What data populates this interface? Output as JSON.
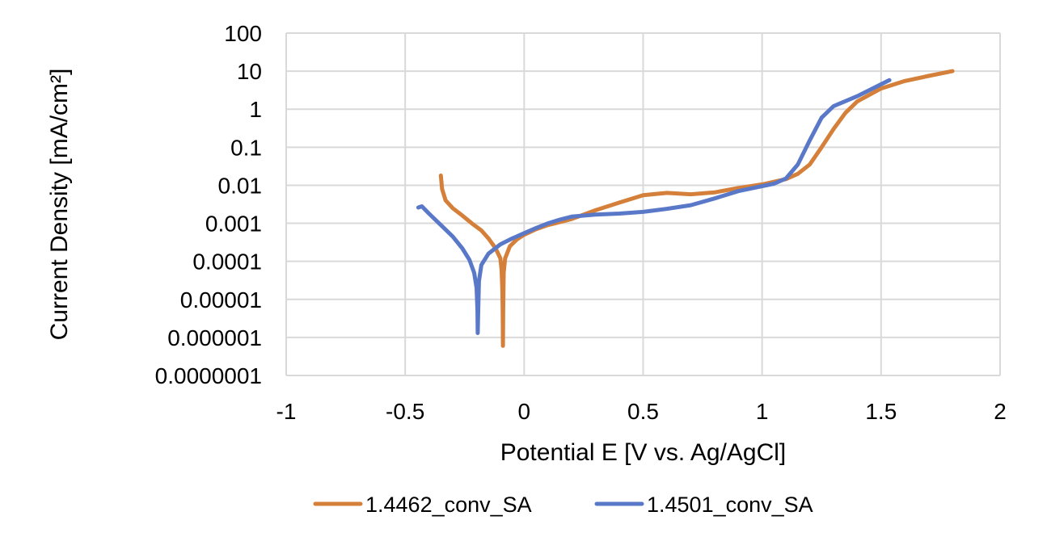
{
  "chart_data": {
    "type": "line",
    "x_axis": {
      "label": "Potential E [V vs. Ag/AgCl]",
      "min": -1,
      "max": 2,
      "ticks": [
        -1,
        -0.5,
        0,
        0.5,
        1,
        1.5,
        2
      ],
      "tick_labels": [
        "-1",
        "-0.5",
        "0",
        "0.5",
        "1",
        "1.5",
        "2"
      ]
    },
    "y_axis": {
      "label": "Current Density [mA/cm²]",
      "scale": "log",
      "min": 1e-07,
      "max": 100,
      "ticks": [
        100,
        10,
        1,
        0.1,
        0.01,
        0.001,
        0.0001,
        1e-05,
        1e-06,
        1e-07
      ],
      "tick_labels": [
        "100",
        "10",
        "1",
        "0.1",
        "0.01",
        "0.001",
        "0.0001",
        "0.00001",
        "0.000001",
        "0.0000001"
      ]
    },
    "grid": true,
    "legend": "bottom",
    "series": [
      {
        "name": "1.4462_conv_SA",
        "color": "#d5803a",
        "points": [
          [
            -0.35,
            0.018
          ],
          [
            -0.345,
            0.008
          ],
          [
            -0.33,
            0.004
          ],
          [
            -0.3,
            0.0025
          ],
          [
            -0.26,
            0.0016
          ],
          [
            -0.22,
            0.001
          ],
          [
            -0.18,
            0.00065
          ],
          [
            -0.15,
            0.0004
          ],
          [
            -0.12,
            0.00022
          ],
          [
            -0.1,
            0.00012
          ],
          [
            -0.095,
            6e-05
          ],
          [
            -0.092,
            2e-05
          ],
          [
            -0.09,
            5e-06
          ],
          [
            -0.089,
            6e-07
          ],
          [
            -0.088,
            5e-06
          ],
          [
            -0.086,
            5e-05
          ],
          [
            -0.08,
            0.00012
          ],
          [
            -0.06,
            0.00025
          ],
          [
            -0.03,
            0.00038
          ],
          [
            0,
            0.0005
          ],
          [
            0.05,
            0.0007
          ],
          [
            0.1,
            0.0009
          ],
          [
            0.13,
            0.001
          ],
          [
            0.2,
            0.0013
          ],
          [
            0.3,
            0.0022
          ],
          [
            0.4,
            0.0035
          ],
          [
            0.5,
            0.0055
          ],
          [
            0.6,
            0.0063
          ],
          [
            0.7,
            0.0058
          ],
          [
            0.8,
            0.0065
          ],
          [
            0.9,
            0.0085
          ],
          [
            1.0,
            0.0105
          ],
          [
            1.1,
            0.0145
          ],
          [
            1.15,
            0.02
          ],
          [
            1.2,
            0.035
          ],
          [
            1.25,
            0.1
          ],
          [
            1.3,
            0.3
          ],
          [
            1.35,
            0.8
          ],
          [
            1.4,
            1.6
          ],
          [
            1.5,
            3.5
          ],
          [
            1.6,
            5.5
          ],
          [
            1.7,
            7.5
          ],
          [
            1.8,
            10
          ]
        ]
      },
      {
        "name": "1.4501_conv_SA",
        "color": "#5a78c8",
        "points": [
          [
            -0.445,
            0.0026
          ],
          [
            -0.43,
            0.0028
          ],
          [
            -0.4,
            0.0018
          ],
          [
            -0.35,
            0.0009
          ],
          [
            -0.3,
            0.00045
          ],
          [
            -0.26,
            0.00022
          ],
          [
            -0.23,
            0.00011
          ],
          [
            -0.21,
            5e-05
          ],
          [
            -0.2,
            2e-05
          ],
          [
            -0.196,
            5e-06
          ],
          [
            -0.195,
            1.3e-06
          ],
          [
            -0.193,
            5e-06
          ],
          [
            -0.19,
            3e-05
          ],
          [
            -0.18,
            8e-05
          ],
          [
            -0.15,
            0.00016
          ],
          [
            -0.1,
            0.00028
          ],
          [
            -0.05,
            0.0004
          ],
          [
            0,
            0.00055
          ],
          [
            0.05,
            0.00075
          ],
          [
            0.1,
            0.001
          ],
          [
            0.15,
            0.00125
          ],
          [
            0.2,
            0.0015
          ],
          [
            0.3,
            0.0017
          ],
          [
            0.4,
            0.0018
          ],
          [
            0.5,
            0.002
          ],
          [
            0.6,
            0.0024
          ],
          [
            0.7,
            0.003
          ],
          [
            0.8,
            0.0045
          ],
          [
            0.9,
            0.007
          ],
          [
            1.0,
            0.0095
          ],
          [
            1.05,
            0.011
          ],
          [
            1.1,
            0.015
          ],
          [
            1.15,
            0.035
          ],
          [
            1.2,
            0.15
          ],
          [
            1.25,
            0.6
          ],
          [
            1.3,
            1.2
          ],
          [
            1.4,
            2.2
          ],
          [
            1.5,
            4.5
          ],
          [
            1.535,
            5.8
          ]
        ]
      }
    ]
  }
}
